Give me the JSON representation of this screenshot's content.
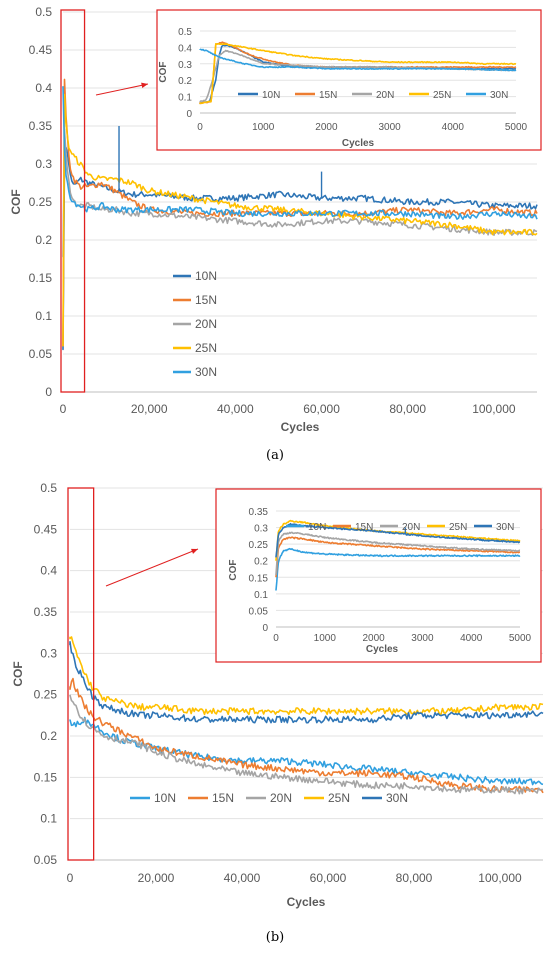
{
  "colors": {
    "10N": "#2e75b6",
    "15N": "#ed7d31",
    "20N": "#a5a5a5",
    "25N": "#ffc000",
    "30N": "#31a0e0",
    "highlight": "#e02020"
  },
  "chart_data": [
    {
      "id": "a-main",
      "type": "line",
      "caption": "(a)",
      "xlabel": "Cycles",
      "ylabel": "COF",
      "xlim": [
        0,
        110000
      ],
      "ylim": [
        0,
        0.5
      ],
      "xticks": [
        0,
        20000,
        40000,
        60000,
        80000,
        100000
      ],
      "xtick_labels": [
        "0",
        "20,000",
        "40,000",
        "60,000",
        "80,000",
        "100,000"
      ],
      "yticks": [
        0,
        0.05,
        0.1,
        0.15,
        0.2,
        0.25,
        0.3,
        0.35,
        0.4,
        0.45,
        0.5
      ],
      "ytick_labels": [
        "0",
        "0.05",
        "0.1",
        "0.15",
        "0.2",
        "0.25",
        "0.3",
        "0.35",
        "0.4",
        "0.45",
        "0.5"
      ],
      "grid": "horizontal",
      "legend": "left-middle",
      "highlight_x": [
        0,
        5000
      ],
      "series": [
        {
          "name": "10N",
          "color": "#2e75b6",
          "x": [
            0,
            300,
            800,
            1500,
            2500,
            4000,
            6000,
            9000,
            12000,
            16000,
            20000,
            30000,
            40000,
            50000,
            60000,
            70000,
            80000,
            90000,
            100000,
            110000
          ],
          "y": [
            0.06,
            0.3,
            0.33,
            0.29,
            0.27,
            0.28,
            0.275,
            0.27,
            0.265,
            0.26,
            0.26,
            0.255,
            0.255,
            0.26,
            0.255,
            0.255,
            0.25,
            0.25,
            0.245,
            0.245
          ]
        },
        {
          "name": "15N",
          "color": "#ed7d31",
          "x": [
            0,
            300,
            800,
            1500,
            2500,
            4000,
            6000,
            9000,
            12000,
            16000,
            20000,
            30000,
            40000,
            50000,
            60000,
            70000,
            80000,
            90000,
            100000,
            110000
          ],
          "y": [
            0.06,
            0.42,
            0.35,
            0.3,
            0.28,
            0.27,
            0.27,
            0.275,
            0.265,
            0.25,
            0.24,
            0.235,
            0.235,
            0.235,
            0.235,
            0.235,
            0.24,
            0.235,
            0.24,
            0.235
          ]
        },
        {
          "name": "20N",
          "color": "#a5a5a5",
          "x": [
            0,
            300,
            800,
            1500,
            2500,
            4000,
            6000,
            9000,
            12000,
            16000,
            20000,
            30000,
            40000,
            50000,
            60000,
            70000,
            80000,
            90000,
            100000,
            110000
          ],
          "y": [
            0.18,
            0.35,
            0.3,
            0.27,
            0.25,
            0.245,
            0.245,
            0.24,
            0.24,
            0.235,
            0.235,
            0.23,
            0.225,
            0.22,
            0.225,
            0.225,
            0.22,
            0.215,
            0.21,
            0.21
          ]
        },
        {
          "name": "25N",
          "color": "#ffc000",
          "x": [
            0,
            300,
            800,
            1500,
            2500,
            4000,
            6000,
            9000,
            12000,
            16000,
            20000,
            30000,
            40000,
            50000,
            60000,
            70000,
            80000,
            90000,
            100000,
            110000
          ],
          "y": [
            0.06,
            0.4,
            0.34,
            0.32,
            0.31,
            0.3,
            0.285,
            0.28,
            0.28,
            0.275,
            0.265,
            0.255,
            0.245,
            0.24,
            0.235,
            0.23,
            0.225,
            0.22,
            0.21,
            0.21
          ]
        },
        {
          "name": "30N",
          "color": "#31a0e0",
          "x": [
            0,
            300,
            800,
            1500,
            2500,
            4000,
            6000,
            9000,
            12000,
            16000,
            20000,
            30000,
            40000,
            50000,
            60000,
            70000,
            80000,
            90000,
            100000,
            110000
          ],
          "y": [
            0.4,
            0.32,
            0.28,
            0.26,
            0.25,
            0.245,
            0.24,
            0.245,
            0.24,
            0.24,
            0.24,
            0.24,
            0.235,
            0.235,
            0.235,
            0.235,
            0.235,
            0.23,
            0.235,
            0.23
          ]
        }
      ]
    },
    {
      "id": "a-inset",
      "type": "line",
      "xlabel": "Cycles",
      "ylabel": "COF",
      "xlim": [
        0,
        5000
      ],
      "ylim": [
        0,
        0.5
      ],
      "xticks": [
        0,
        1000,
        2000,
        3000,
        4000,
        5000
      ],
      "xtick_labels": [
        "0",
        "1000",
        "2000",
        "3000",
        "4000",
        "5000"
      ],
      "yticks": [
        0,
        0.1,
        0.2,
        0.3,
        0.4,
        0.5
      ],
      "ytick_labels": [
        "0",
        "0.1",
        "0.2",
        "0.3",
        "0.4",
        "0.5"
      ],
      "grid": "horizontal",
      "legend": "bottom-inside",
      "series": [
        {
          "name": "10N",
          "color": "#2e75b6",
          "x": [
            0,
            150,
            250,
            300,
            350,
            450,
            600,
            800,
            1000,
            1500,
            2000,
            3000,
            4000,
            5000
          ],
          "y": [
            0.06,
            0.07,
            0.2,
            0.35,
            0.41,
            0.41,
            0.39,
            0.35,
            0.31,
            0.28,
            0.28,
            0.28,
            0.27,
            0.27
          ]
        },
        {
          "name": "15N",
          "color": "#ed7d31",
          "x": [
            0,
            180,
            250,
            350,
            500,
            700,
            900,
            1200,
            1500,
            2000,
            3000,
            4000,
            5000
          ],
          "y": [
            0.06,
            0.07,
            0.42,
            0.43,
            0.41,
            0.37,
            0.34,
            0.31,
            0.29,
            0.28,
            0.28,
            0.28,
            0.28
          ]
        },
        {
          "name": "20N",
          "color": "#a5a5a5",
          "x": [
            0,
            100,
            200,
            300,
            400,
            600,
            800,
            1000,
            1500,
            2000,
            3000,
            4000,
            5000
          ],
          "y": [
            0.07,
            0.08,
            0.2,
            0.35,
            0.38,
            0.36,
            0.33,
            0.3,
            0.29,
            0.28,
            0.28,
            0.27,
            0.26
          ]
        },
        {
          "name": "25N",
          "color": "#ffc000",
          "x": [
            0,
            180,
            250,
            400,
            700,
            1000,
            1500,
            2000,
            2500,
            3000,
            3500,
            4000,
            4500,
            5000
          ],
          "y": [
            0.06,
            0.07,
            0.42,
            0.42,
            0.4,
            0.38,
            0.35,
            0.33,
            0.32,
            0.31,
            0.31,
            0.31,
            0.3,
            0.3
          ]
        },
        {
          "name": "30N",
          "color": "#31a0e0",
          "x": [
            0,
            100,
            200,
            300,
            500,
            700,
            1000,
            1500,
            2000,
            3000,
            4000,
            5000
          ],
          "y": [
            0.39,
            0.38,
            0.36,
            0.34,
            0.32,
            0.3,
            0.28,
            0.28,
            0.27,
            0.27,
            0.27,
            0.26
          ]
        }
      ]
    },
    {
      "id": "b-main",
      "type": "line",
      "caption": "(b)",
      "xlabel": "Cycles",
      "ylabel": "COF",
      "xlim": [
        0,
        110000
      ],
      "ylim": [
        0.05,
        0.5
      ],
      "xticks": [
        0,
        20000,
        40000,
        60000,
        80000,
        100000
      ],
      "xtick_labels": [
        "0",
        "20,000",
        "40,000",
        "60,000",
        "80,000",
        "100,000"
      ],
      "yticks": [
        0.05,
        0.1,
        0.15,
        0.2,
        0.25,
        0.3,
        0.35,
        0.4,
        0.45,
        0.5
      ],
      "ytick_labels": [
        "0.05",
        "0.1",
        "0.15",
        "0.2",
        "0.25",
        "0.3",
        "0.35",
        "0.4",
        "0.45",
        "0.5"
      ],
      "grid": "horizontal",
      "legend": "bottom-inside",
      "highlight_x": [
        0,
        5500
      ],
      "series": [
        {
          "name": "10N",
          "color": "#31a0e0",
          "x": [
            0,
            500,
            1500,
            3000,
            5000,
            8000,
            12000,
            16000,
            20000,
            30000,
            40000,
            50000,
            60000,
            70000,
            80000,
            90000,
            100000,
            110000
          ],
          "y": [
            0.22,
            0.21,
            0.215,
            0.22,
            0.215,
            0.205,
            0.195,
            0.19,
            0.185,
            0.175,
            0.17,
            0.17,
            0.165,
            0.16,
            0.155,
            0.15,
            0.145,
            0.145
          ]
        },
        {
          "name": "15N",
          "color": "#ed7d31",
          "x": [
            0,
            500,
            1500,
            3000,
            5000,
            8000,
            12000,
            16000,
            20000,
            30000,
            40000,
            50000,
            60000,
            70000,
            80000,
            90000,
            100000,
            110000
          ],
          "y": [
            0.26,
            0.27,
            0.255,
            0.24,
            0.225,
            0.215,
            0.205,
            0.195,
            0.185,
            0.175,
            0.165,
            0.16,
            0.155,
            0.155,
            0.15,
            0.14,
            0.135,
            0.135
          ]
        },
        {
          "name": "20N",
          "color": "#a5a5a5",
          "x": [
            0,
            500,
            1500,
            3000,
            5000,
            8000,
            12000,
            16000,
            20000,
            30000,
            40000,
            50000,
            60000,
            70000,
            80000,
            90000,
            100000,
            110000
          ],
          "y": [
            0.25,
            0.245,
            0.235,
            0.22,
            0.21,
            0.2,
            0.195,
            0.19,
            0.18,
            0.165,
            0.155,
            0.15,
            0.145,
            0.14,
            0.14,
            0.135,
            0.135,
            0.133
          ]
        },
        {
          "name": "25N",
          "color": "#ffc000",
          "x": [
            0,
            500,
            1500,
            3000,
            5000,
            8000,
            12000,
            16000,
            20000,
            30000,
            40000,
            50000,
            60000,
            70000,
            80000,
            90000,
            100000,
            110000
          ],
          "y": [
            0.32,
            0.315,
            0.3,
            0.28,
            0.26,
            0.245,
            0.24,
            0.235,
            0.235,
            0.23,
            0.23,
            0.23,
            0.23,
            0.23,
            0.23,
            0.23,
            0.235,
            0.235
          ]
        },
        {
          "name": "30N",
          "color": "#2e75b6",
          "x": [
            0,
            500,
            1500,
            3000,
            5000,
            8000,
            12000,
            16000,
            20000,
            30000,
            40000,
            50000,
            60000,
            70000,
            80000,
            90000,
            100000,
            110000
          ],
          "y": [
            0.31,
            0.3,
            0.285,
            0.27,
            0.25,
            0.235,
            0.23,
            0.225,
            0.225,
            0.22,
            0.22,
            0.22,
            0.22,
            0.22,
            0.225,
            0.225,
            0.225,
            0.228
          ]
        }
      ]
    },
    {
      "id": "b-inset",
      "type": "line",
      "xlabel": "Cycles",
      "ylabel": "COF",
      "xlim": [
        0,
        5000
      ],
      "ylim": [
        0,
        0.35
      ],
      "xticks": [
        0,
        1000,
        2000,
        3000,
        4000,
        5000
      ],
      "xtick_labels": [
        "0",
        "1000",
        "2000",
        "3000",
        "4000",
        "5000"
      ],
      "yticks": [
        0,
        0.05,
        0.1,
        0.15,
        0.2,
        0.25,
        0.3,
        0.35
      ],
      "ytick_labels": [
        "0",
        "0.05",
        "0.1",
        "0.15",
        "0.2",
        "0.25",
        "0.3",
        "0.35"
      ],
      "grid": "horizontal",
      "legend": "top-inside",
      "series": [
        {
          "name": "10N",
          "color": "#31a0e0",
          "x": [
            0,
            50,
            150,
            300,
            600,
            1000,
            2000,
            3000,
            4000,
            5000
          ],
          "y": [
            0.11,
            0.2,
            0.23,
            0.235,
            0.225,
            0.22,
            0.215,
            0.215,
            0.215,
            0.215
          ]
        },
        {
          "name": "15N",
          "color": "#ed7d31",
          "x": [
            0,
            50,
            150,
            300,
            600,
            1000,
            2000,
            3000,
            4000,
            5000
          ],
          "y": [
            0.15,
            0.24,
            0.265,
            0.27,
            0.265,
            0.255,
            0.245,
            0.235,
            0.23,
            0.225
          ]
        },
        {
          "name": "20N",
          "color": "#a5a5a5",
          "x": [
            0,
            50,
            150,
            300,
            600,
            1000,
            2000,
            3000,
            4000,
            5000
          ],
          "y": [
            0.16,
            0.26,
            0.28,
            0.285,
            0.28,
            0.27,
            0.255,
            0.245,
            0.235,
            0.23
          ]
        },
        {
          "name": "25N",
          "color": "#ffc000",
          "x": [
            0,
            50,
            150,
            300,
            600,
            1000,
            2000,
            3000,
            4000,
            5000
          ],
          "y": [
            0.2,
            0.29,
            0.31,
            0.32,
            0.315,
            0.305,
            0.29,
            0.28,
            0.27,
            0.26
          ]
        },
        {
          "name": "30N",
          "color": "#2e75b6",
          "x": [
            0,
            50,
            150,
            300,
            600,
            1000,
            2000,
            3000,
            4000,
            5000
          ],
          "y": [
            0.21,
            0.28,
            0.3,
            0.31,
            0.305,
            0.3,
            0.29,
            0.275,
            0.265,
            0.255
          ]
        }
      ]
    }
  ]
}
